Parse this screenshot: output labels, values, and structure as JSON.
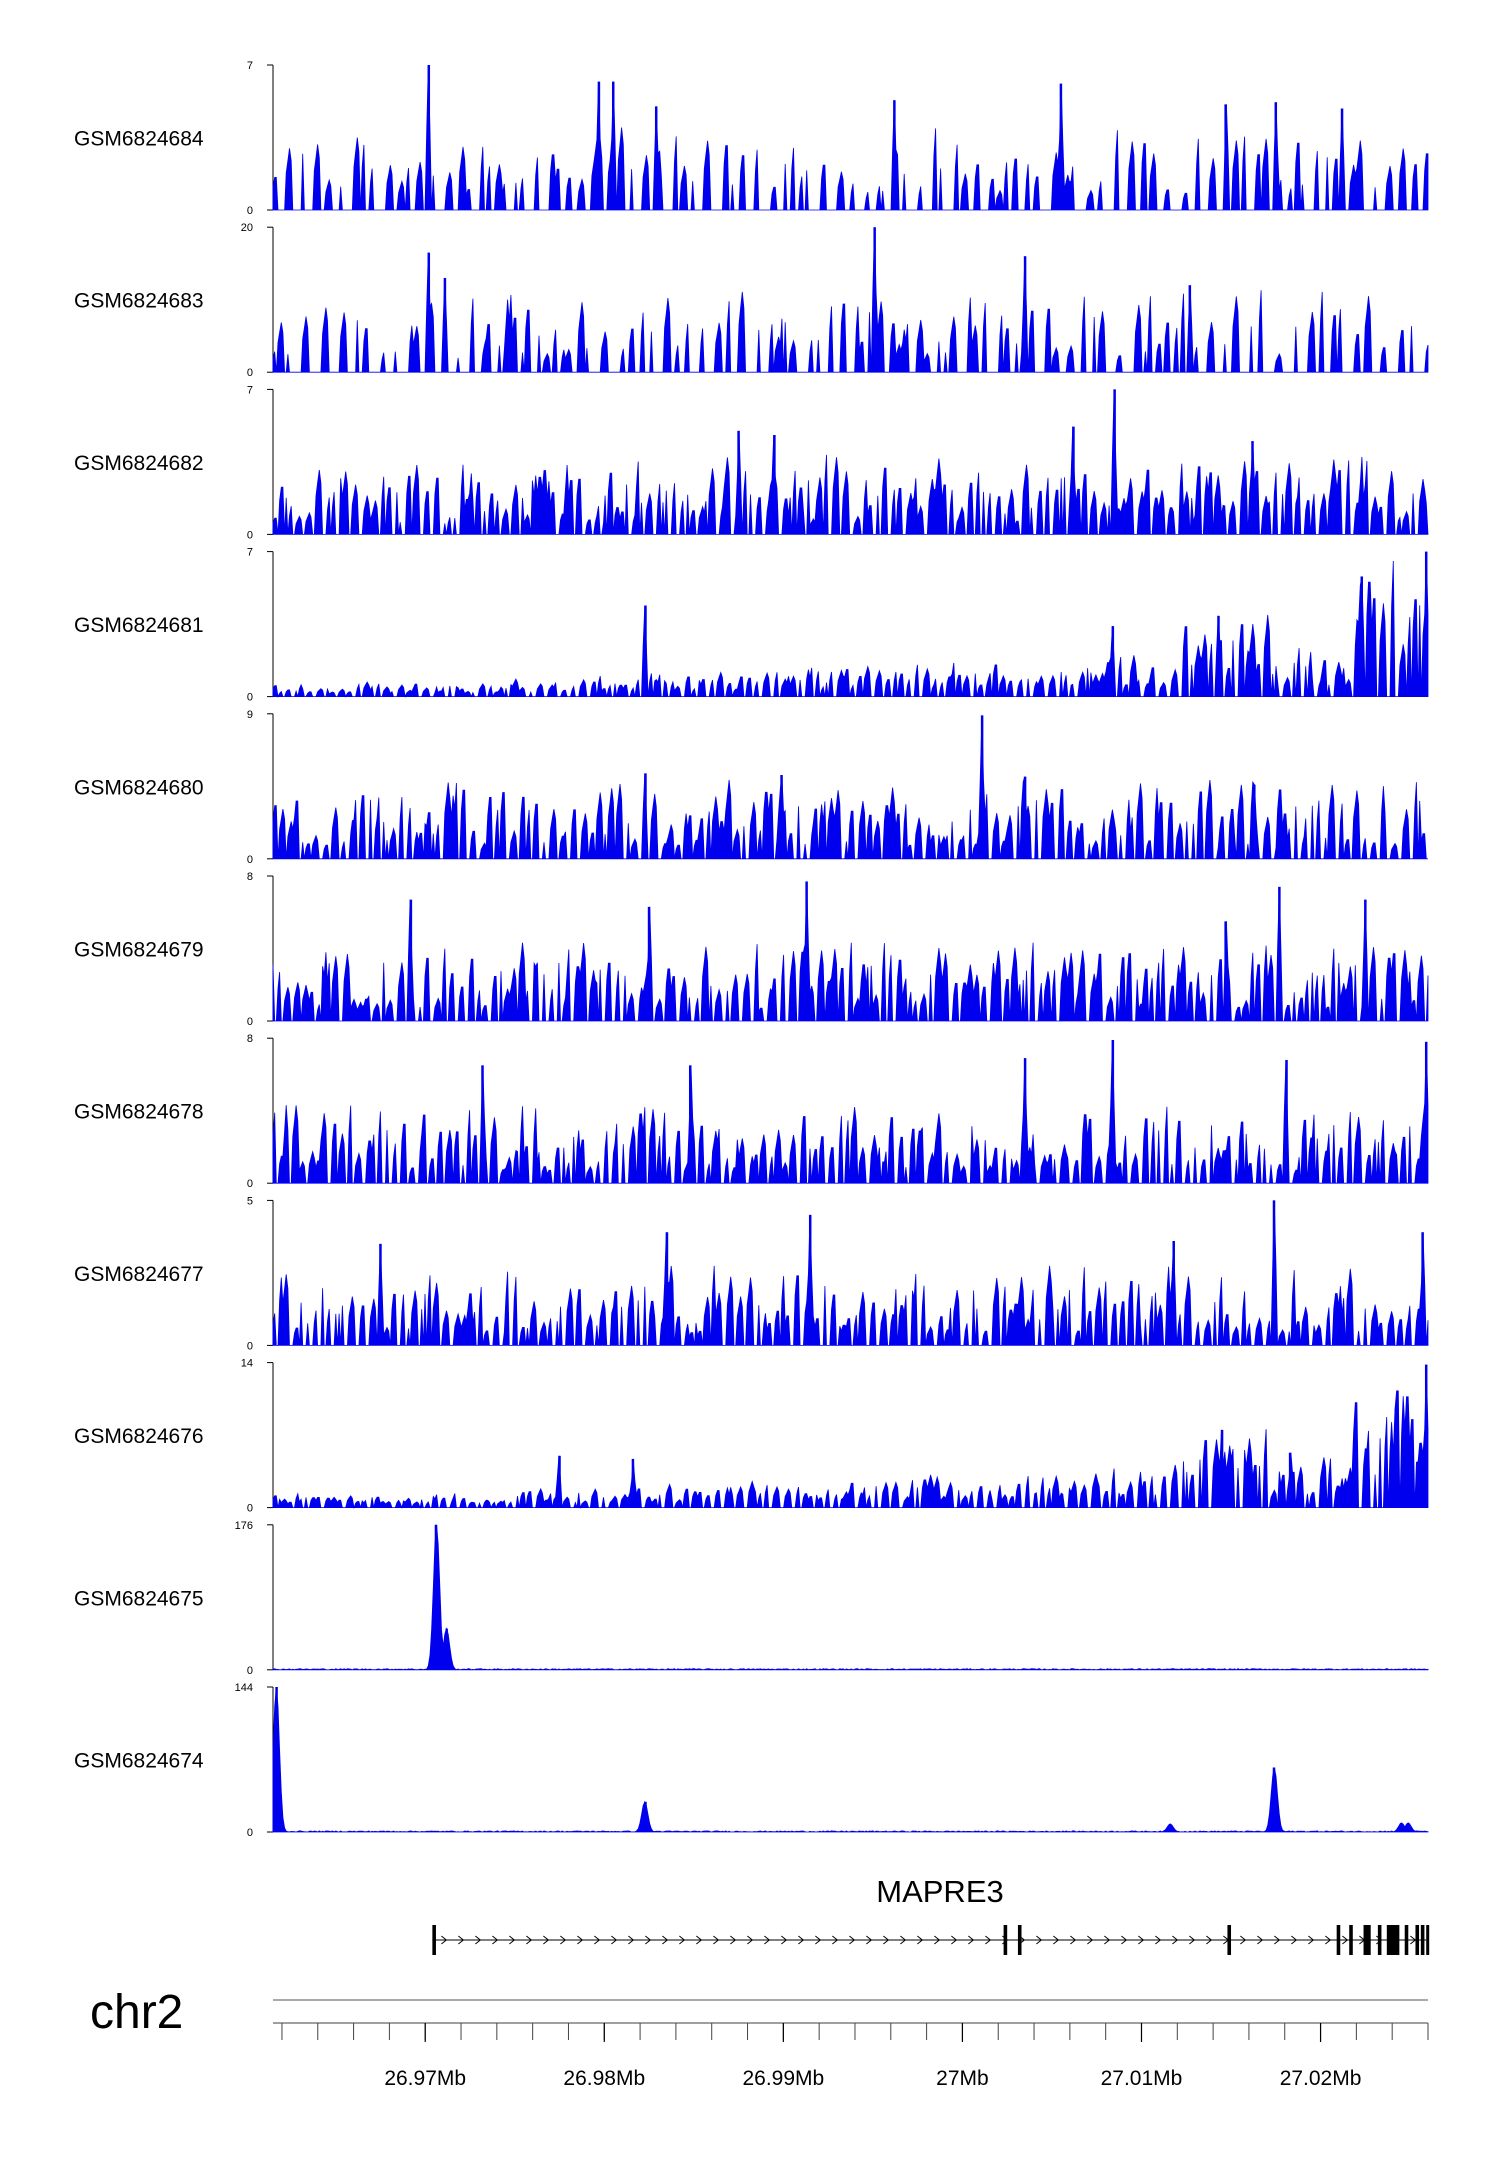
{
  "chart_data": {
    "type": "area",
    "genome": {
      "chromosome": "chr2",
      "region_mb": [
        26.9615,
        27.026
      ],
      "axis_ticks": [
        26.97,
        26.98,
        26.99,
        27.0,
        27.01,
        27.02
      ],
      "axis_tick_labels": [
        "26.97Mb",
        "26.98Mb",
        "26.99Mb",
        "27Mb",
        "27.01Mb",
        "27.02Mb"
      ],
      "minor_tick_step_mb": 0.002
    },
    "fill_color": "#0000ee",
    "tracks": [
      {
        "name": "GSM6824684",
        "ymax": 7,
        "ymin": 0,
        "profile": "sparse",
        "peaks": [
          [
            26.9702,
            7
          ],
          [
            26.9797,
            6.2
          ],
          [
            26.9805,
            6.2
          ],
          [
            26.9829,
            5
          ],
          [
            26.9962,
            5.3
          ],
          [
            27.0055,
            6.1
          ],
          [
            27.0147,
            5.1
          ],
          [
            27.0175,
            5.2
          ],
          [
            27.0212,
            4.9
          ]
        ]
      },
      {
        "name": "GSM6824683",
        "ymax": 20,
        "ymin": 0,
        "profile": "sparse",
        "peaks": [
          [
            26.9702,
            16.5
          ],
          [
            26.9711,
            13
          ],
          [
            26.9951,
            20
          ],
          [
            27.0035,
            16
          ],
          [
            27.0127,
            12
          ]
        ]
      },
      {
        "name": "GSM6824682",
        "ymax": 7,
        "ymin": 0,
        "profile": "dense",
        "peaks": [
          [
            26.9875,
            5
          ],
          [
            26.9895,
            4.8
          ],
          [
            27.0062,
            5.2
          ],
          [
            27.0085,
            7
          ],
          [
            27.0162,
            4.5
          ]
        ]
      },
      {
        "name": "GSM6824681",
        "ymax": 7,
        "ymin": 0,
        "profile": "rising",
        "peaks": [
          [
            26.9823,
            4.4
          ],
          [
            27.0084,
            3.4
          ],
          [
            27.0143,
            3.9
          ],
          [
            27.0223,
            5.8
          ],
          [
            27.0259,
            7
          ]
        ]
      },
      {
        "name": "GSM6824680",
        "ymax": 9,
        "ymin": 0,
        "profile": "dense",
        "peaks": [
          [
            26.9823,
            5.3
          ],
          [
            26.9899,
            5.2
          ],
          [
            27.0011,
            8.9
          ],
          [
            27.0035,
            5.1
          ],
          [
            27.0163,
            4.6
          ]
        ]
      },
      {
        "name": "GSM6824679",
        "ymax": 8,
        "ymin": 0,
        "profile": "dense",
        "peaks": [
          [
            26.9692,
            6.7
          ],
          [
            26.9825,
            6.3
          ],
          [
            26.9913,
            7.7
          ],
          [
            27.0147,
            5.5
          ],
          [
            27.0177,
            7.4
          ],
          [
            27.0225,
            6.7
          ]
        ]
      },
      {
        "name": "GSM6824678",
        "ymax": 8,
        "ymin": 0,
        "profile": "dense",
        "peaks": [
          [
            26.9732,
            6.5
          ],
          [
            26.9848,
            6.5
          ],
          [
            27.0035,
            6.9
          ],
          [
            27.0084,
            7.9
          ],
          [
            27.0181,
            6.8
          ],
          [
            27.0259,
            7.8
          ]
        ]
      },
      {
        "name": "GSM6824677",
        "ymax": 5,
        "ymin": 0,
        "profile": "dense",
        "peaks": [
          [
            26.9675,
            3.5
          ],
          [
            26.9835,
            3.9
          ],
          [
            26.9915,
            4.5
          ],
          [
            27.0118,
            3.6
          ],
          [
            27.0174,
            5
          ],
          [
            27.0257,
            3.9
          ]
        ]
      },
      {
        "name": "GSM6824676",
        "ymax": 14,
        "ymin": 0,
        "profile": "rising",
        "peaks": [
          [
            26.9775,
            5
          ],
          [
            26.9816,
            4.7
          ],
          [
            27.0145,
            7.5
          ],
          [
            27.0183,
            5.3
          ],
          [
            27.0242,
            9.5
          ],
          [
            27.0259,
            13.8
          ]
        ]
      },
      {
        "name": "GSM6824675",
        "ymax": 176,
        "ymin": 0,
        "profile": "flat",
        "peaks": [
          [
            26.9706,
            176
          ],
          [
            26.9712,
            50
          ]
        ]
      },
      {
        "name": "GSM6824674",
        "ymax": 144,
        "ymin": 0,
        "profile": "flat",
        "peaks": [
          [
            26.9617,
            144
          ],
          [
            26.9823,
            30
          ],
          [
            27.0116,
            8
          ],
          [
            27.0174,
            64
          ],
          [
            27.0245,
            9
          ],
          [
            27.0249,
            9
          ]
        ]
      }
    ],
    "gene": {
      "name": "MAPRE3",
      "start_mb": 26.9704,
      "end_mb": 27.0259,
      "strand": "+",
      "exons_mb": [
        [
          26.9704,
          26.9706
        ],
        [
          27.0023,
          27.0025
        ],
        [
          27.0031,
          27.0033
        ],
        [
          27.0148,
          27.015
        ],
        [
          27.0209,
          27.0211
        ],
        [
          27.0216,
          27.0218
        ],
        [
          27.0224,
          27.0228
        ],
        [
          27.0232,
          27.0234
        ],
        [
          27.0237,
          27.0244
        ],
        [
          27.0247,
          27.0249
        ],
        [
          27.0253,
          27.0255
        ],
        [
          27.0256,
          27.0258
        ],
        [
          27.0259,
          27.026
        ]
      ]
    }
  }
}
